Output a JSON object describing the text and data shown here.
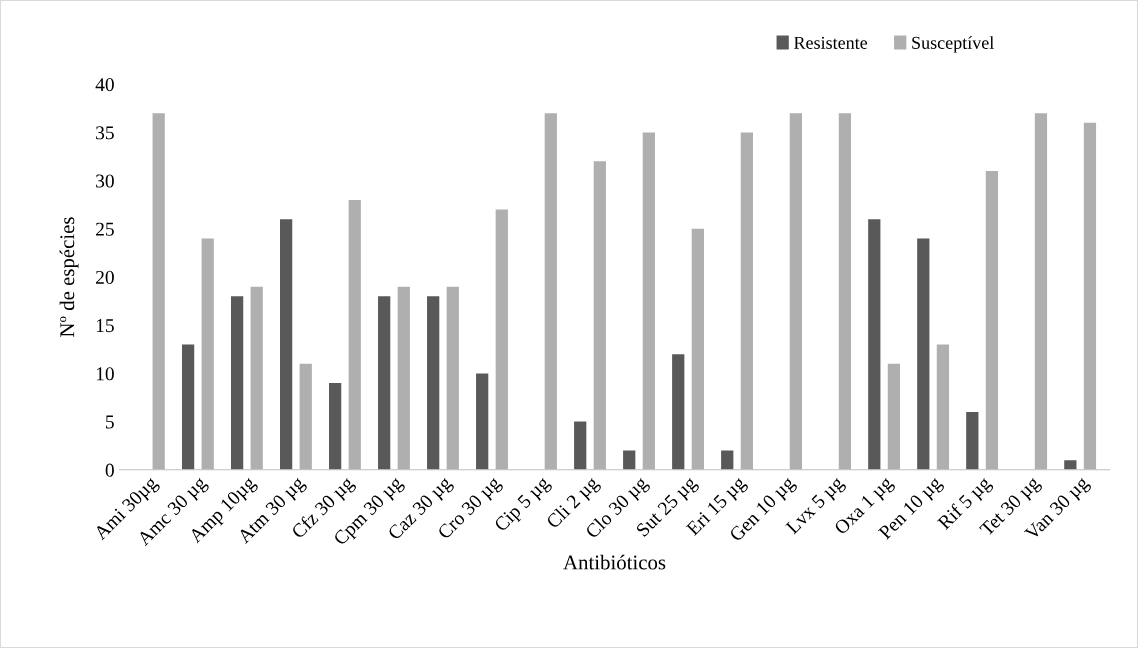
{
  "chart_data": {
    "type": "bar",
    "xlabel": "Antibióticos",
    "ylabel": "Nº de espécies",
    "categories": [
      "Ami 30µg",
      "Amc 30 µg",
      "Amp 10µg",
      "Atm 30 µg",
      "Cfz 30 µg",
      "Cpm 30 µg",
      "Caz 30 µg",
      "Cro 30 µg",
      "Cip 5 µg",
      "Cli 2 µg",
      "Clo 30 µg",
      "Sut 25 µg",
      "Eri 15 µg",
      "Gen 10 µg",
      "Lvx 5 µg",
      "Oxa 1 µg",
      "Pen 10 µg",
      "Rif 5 µg",
      "Tet 30 µg",
      "Van 30 µg"
    ],
    "series": [
      {
        "name": "Resistente",
        "color": "#595959",
        "values": [
          0,
          13,
          18,
          26,
          9,
          18,
          18,
          10,
          0,
          5,
          2,
          12,
          2,
          0,
          0,
          26,
          24,
          6,
          0,
          1
        ]
      },
      {
        "name": "Susceptível",
        "color": "#afafaf",
        "values": [
          37,
          24,
          19,
          11,
          28,
          19,
          19,
          27,
          37,
          32,
          35,
          25,
          35,
          37,
          37,
          11,
          13,
          31,
          37,
          36
        ]
      }
    ],
    "ylim": [
      0,
      40
    ],
    "yticks": [
      0,
      5,
      10,
      15,
      20,
      25,
      30,
      35,
      40
    ],
    "grid": false,
    "legend": "top right"
  }
}
